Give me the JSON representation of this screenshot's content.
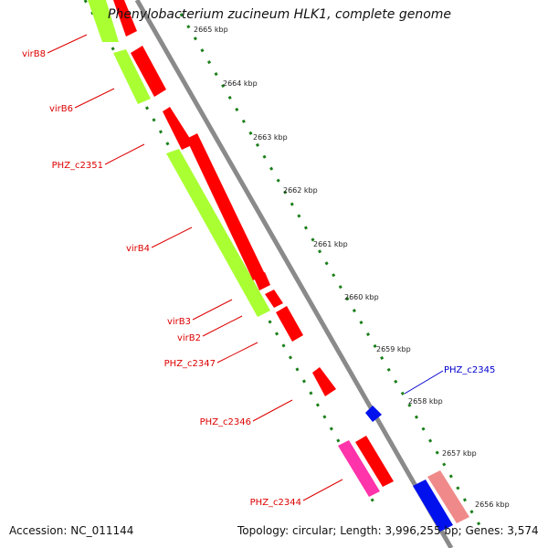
{
  "title": "Phenylobacterium zucineum HLK1, complete genome",
  "accession": "Accession: NC_011144",
  "stats": "Topology: circular; Length: 3,996,255 bp; Genes: 3,574",
  "colors": {
    "backbone": "#8a8a8a",
    "tick_dots": "#1a7f1a",
    "label_red": "#dd0000",
    "label_blue": "#0000cc",
    "gene_red": "#ff0000",
    "gene_green": "#aaff33",
    "gene_magenta": "#ff33aa",
    "gene_blue": "#0011ee",
    "gene_pink": "#f08a8a"
  },
  "ticks": [
    "2665 kbp",
    "2664 kbp",
    "2663 kbp",
    "2662 kbp",
    "2661 kbp",
    "2660 kbp",
    "2659 kbp",
    "2658 kbp",
    "2657 kbp",
    "2656 kbp"
  ],
  "gene_labels": [
    "virB8",
    "virB6",
    "PHZ_c2351",
    "virB4",
    "virB3",
    "virB2",
    "PHZ_c2347",
    "PHZ_c2346",
    "PHZ_c2345",
    "PHZ_c2344"
  ]
}
